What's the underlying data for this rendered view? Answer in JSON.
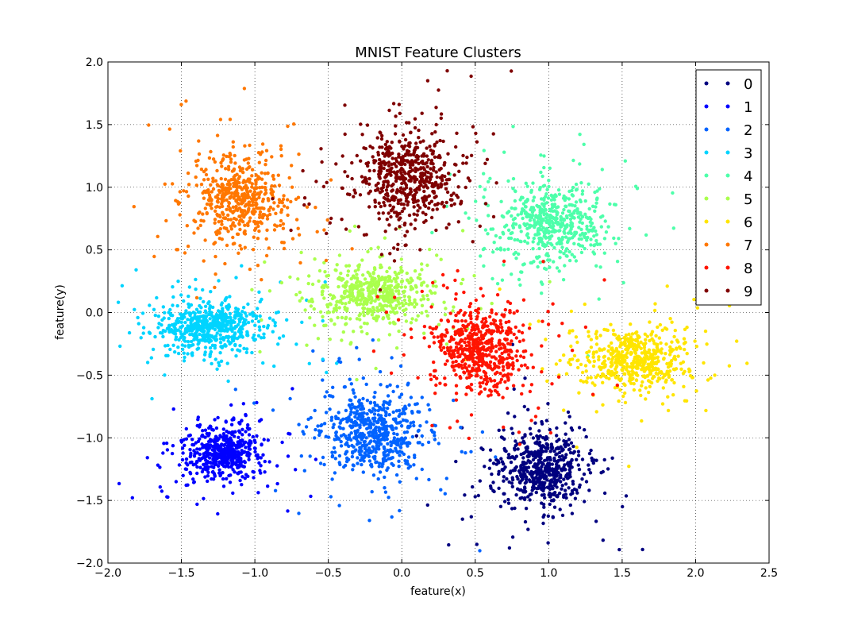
{
  "chart_data": {
    "type": "scatter",
    "title": "MNIST Feature Clusters",
    "xlabel": "feature(x)",
    "ylabel": "feature(y)",
    "xlim": [
      -2.0,
      2.5
    ],
    "ylim": [
      -2.0,
      2.0
    ],
    "xticks": [
      -2.0,
      -1.5,
      -1.0,
      -0.5,
      0.0,
      0.5,
      1.0,
      1.5,
      2.0,
      2.5
    ],
    "yticks": [
      -2.0,
      -1.5,
      -1.0,
      -0.5,
      0.0,
      0.5,
      1.0,
      1.5,
      2.0
    ],
    "xtick_labels": [
      "−2.0",
      "−1.5",
      "−1.0",
      "−0.5",
      "0.0",
      "0.5",
      "1.0",
      "1.5",
      "2.0",
      "2.5"
    ],
    "ytick_labels": [
      "−2.0",
      "−1.5",
      "−1.0",
      "−0.5",
      "0.0",
      "0.5",
      "1.0",
      "1.5",
      "2.0"
    ],
    "grid": true,
    "grid_style": "dotted",
    "legend_position": "top-right",
    "series": [
      {
        "name": "0",
        "color": "#00007f",
        "center": [
          0.95,
          -1.25
        ],
        "spread": [
          0.14,
          0.15
        ],
        "count": 600
      },
      {
        "name": "1",
        "color": "#0000ff",
        "center": [
          -1.22,
          -1.12
        ],
        "spread": [
          0.12,
          0.1
        ],
        "count": 550
      },
      {
        "name": "2",
        "color": "#0063ff",
        "center": [
          -0.2,
          -0.95
        ],
        "spread": [
          0.16,
          0.15
        ],
        "count": 600
      },
      {
        "name": "3",
        "color": "#00d4ff",
        "center": [
          -1.3,
          -0.12
        ],
        "spread": [
          0.18,
          0.1
        ],
        "count": 600
      },
      {
        "name": "4",
        "color": "#4dffaa",
        "center": [
          1.0,
          0.72
        ],
        "spread": [
          0.18,
          0.15
        ],
        "count": 550
      },
      {
        "name": "5",
        "color": "#aaff4d",
        "center": [
          -0.2,
          0.15
        ],
        "spread": [
          0.18,
          0.12
        ],
        "count": 550
      },
      {
        "name": "6",
        "color": "#ffe500",
        "center": [
          1.6,
          -0.38
        ],
        "spread": [
          0.17,
          0.12
        ],
        "count": 550
      },
      {
        "name": "7",
        "color": "#ff7700",
        "center": [
          -1.1,
          0.92
        ],
        "spread": [
          0.15,
          0.15
        ],
        "count": 550
      },
      {
        "name": "8",
        "color": "#ff1400",
        "center": [
          0.55,
          -0.28
        ],
        "spread": [
          0.16,
          0.16
        ],
        "count": 600
      },
      {
        "name": "9",
        "color": "#7f0000",
        "center": [
          0.05,
          1.08
        ],
        "spread": [
          0.16,
          0.18
        ],
        "count": 600
      }
    ]
  }
}
